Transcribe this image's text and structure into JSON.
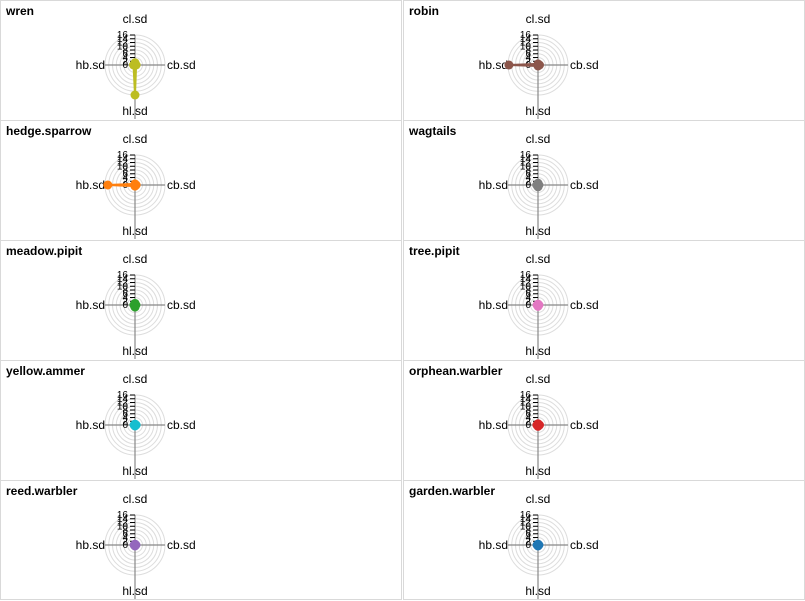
{
  "chart_data": {
    "type": "radar",
    "axes": [
      "cl.sd",
      "cb.sd",
      "hl.sd",
      "hb.sd"
    ],
    "radial_ticks": [
      "0",
      "2",
      "4",
      "6",
      "8",
      "10",
      "12",
      "14",
      "16"
    ],
    "rlim": [
      0,
      16
    ],
    "grid": true,
    "panels": [
      {
        "title": "wren",
        "color": "#bcbd22",
        "values": [
          1.2,
          0.6,
          16.0,
          0.8
        ]
      },
      {
        "title": "robin",
        "color": "#8c564b",
        "values": [
          0.6,
          0.8,
          0.5,
          15.5
        ]
      },
      {
        "title": "hedge.sparrow",
        "color": "#ff7f0e",
        "values": [
          0.6,
          0.6,
          0.6,
          14.5
        ]
      },
      {
        "title": "wagtails",
        "color": "#7f7f7f",
        "values": [
          1.0,
          0.5,
          1.0,
          0.7
        ]
      },
      {
        "title": "meadow.pipit",
        "color": "#2ca02c",
        "values": [
          0.9,
          0.5,
          1.1,
          0.6
        ]
      },
      {
        "title": "tree.pipit",
        "color": "#e377c2",
        "values": [
          0.5,
          0.5,
          0.7,
          0.5
        ]
      },
      {
        "title": "yellow.ammer",
        "color": "#17becf",
        "values": [
          0.5,
          0.6,
          0.5,
          0.5
        ]
      },
      {
        "title": "orphean.warbler",
        "color": "#d62728",
        "values": [
          0.7,
          0.8,
          0.7,
          0.6
        ]
      },
      {
        "title": "reed.warbler",
        "color": "#9467bd",
        "values": [
          0.5,
          0.5,
          0.5,
          0.5
        ]
      },
      {
        "title": "garden.warbler",
        "color": "#1f77b4",
        "values": [
          0.5,
          0.5,
          0.5,
          0.5
        ]
      }
    ]
  }
}
